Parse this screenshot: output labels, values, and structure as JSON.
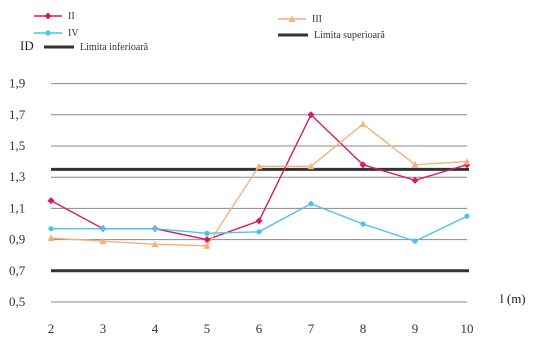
{
  "chart_data": {
    "type": "line",
    "title": "",
    "xlabel": "l (m)",
    "ylabel": "ID",
    "x": [
      2,
      3,
      4,
      5,
      6,
      7,
      8,
      9,
      10
    ],
    "x_ticks": [
      "2",
      "3",
      "4",
      "5",
      "6",
      "7",
      "8",
      "9",
      "10"
    ],
    "y_ticks": [
      "0,5",
      "0,7",
      "0,9",
      "1,1",
      "1,3",
      "1,5",
      "1,7",
      "1,9"
    ],
    "ylim": [
      0.5,
      2.0
    ],
    "xlim": [
      2,
      10
    ],
    "grid": "horizontal",
    "legend_position": "top",
    "series": [
      {
        "name": "II",
        "color": "#d81b60",
        "marker": "diamond",
        "values": [
          1.15,
          0.97,
          0.97,
          0.9,
          1.02,
          1.7,
          1.38,
          1.28,
          1.38
        ]
      },
      {
        "name": "III",
        "color": "#f4b27a",
        "marker": "triangle",
        "values": [
          0.91,
          0.89,
          0.87,
          0.86,
          1.37,
          1.37,
          1.64,
          1.38,
          1.4
        ]
      },
      {
        "name": "IV",
        "color": "#4cc3ea",
        "marker": "circle",
        "values": [
          0.97,
          0.97,
          0.97,
          0.94,
          0.95,
          1.13,
          1.0,
          0.89,
          1.05
        ]
      }
    ],
    "limits": [
      {
        "name": "Limita inferioară",
        "value": 0.7,
        "color": "#333333"
      },
      {
        "name": "Limita superioară",
        "value": 1.35,
        "color": "#333333"
      }
    ]
  }
}
